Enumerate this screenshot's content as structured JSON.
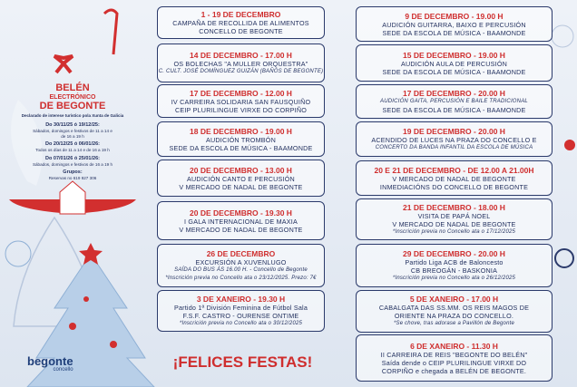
{
  "belen": {
    "title": [
      "BELÉN",
      "ELECTRÓNICO",
      "DE BEGONTE"
    ],
    "subtitle": "Declarado de interese turístico pola Xunta de Galicia",
    "schedule": [
      {
        "period": "Do 30/11/25 ó 19/12/25:",
        "hours": "Sábados, domingos e festivos de 11 a 14 e de 16 a 19 h"
      },
      {
        "period": "Do 20/12/25 ó 06/01/26:",
        "hours": "Todos os días de 11 a 14 e de 16 a 19 h"
      },
      {
        "period": "Do 07/01/26 ó 25/01/26:",
        "hours": "Sábados, domingos e festivos de 16 a 19 h"
      }
    ],
    "groups": "Grupos:",
    "booking": "Reservas no 619 927 306"
  },
  "events_left": [
    {
      "date": "1 - 19 DE DECEMBRO",
      "lines": [
        "CAMPAÑA DE RECOLLIDA DE ALIMENTOS",
        "CONCELLO DE BEGONTE"
      ]
    },
    {
      "date": "14 DE DECEMBRO - 17.00 H",
      "lines": [
        "OS BOLECHAS \"A MULLER ORQUESTRA\"",
        "C. CULT. JOSÉ DOMÍNGUEZ GUIZÁN (BAÑOS DE BEGONTE)"
      ]
    },
    {
      "date": "17 DE DECEMBRO - 12.00 H",
      "lines": [
        "IV CARREIRA SOLIDARIA SAN FAUSQUIÑO",
        "CEIP PLURILINGUE VIRXE DO CORPIÑO"
      ]
    },
    {
      "date": "18 DE DECEMBRO - 19.00 H",
      "lines": [
        "AUDICIÓN TROMBÓN",
        "SEDE DA ESCOLA DE MÚSICA - BAAMONDE"
      ]
    },
    {
      "date": "20 DE DECEMBRO - 13.00 H",
      "lines": [
        "AUDICIÓN CANTO E PERCUSIÓN",
        "V MERCADO DE NADAL DE BEGONTE"
      ]
    },
    {
      "date": "20 DE DECEMBRO - 19.30 H",
      "lines": [
        "I GALA INTERNACIONAL DE MAXIA",
        "V MERCADO DE NADAL DE BEGONTE"
      ]
    },
    {
      "date": "26 DE DECEMBRO",
      "lines": [
        "EXCURSIÓN A XUVENLUGO",
        "SAÍDA DO BUS ÁS 16.00 H. - Concello de Begonte",
        "*Inscrición previa no Concello ata o 23/12/2025. Prezo: 7€"
      ]
    },
    {
      "date": "3 DE XANEIRO - 19.30 H",
      "lines": [
        "Partido 1ª División Feminina de Fútbol Sala",
        "F.S.F. CASTRO - OURENSE ONTIME",
        "*Inscrición previa no Concello ata o 30/12/2025"
      ]
    }
  ],
  "events_right": [
    {
      "date": "9 DE DECEMBRO - 19.00 H",
      "lines": [
        "AUDICIÓN GUITARRA, BAIXO E PERCUSIÓN",
        "SEDE DA ESCOLA DE MÚSICA - BAAMONDE"
      ]
    },
    {
      "date": "15 DE DECEMBRO - 19.00 H",
      "lines": [
        "AUDICIÓN AULA DE PERCUSIÓN",
        "SEDE DA ESCOLA DE MÚSICA - BAAMONDE"
      ]
    },
    {
      "date": "17 DE DECEMBRO - 20.00 H",
      "lines": [
        "AUDICIÓN GAITA, PERCUSIÓN E BAILE TRADICIONAL",
        "SEDE DA ESCOLA DE MÚSICA - BAAMONDE"
      ]
    },
    {
      "date": "19 DE DECEMBRO - 20.00 H",
      "lines": [
        "ACENDIDO DE LUCES NA PRAZA DO CONCELLO E",
        "CONCERTO DA BANDA INFANTIL DA ESCOLA DE MÚSICA"
      ]
    },
    {
      "date": "20 E 21 DE DECEMBRO - DE 12.00 A 21.00H",
      "lines": [
        "V MERCADO DE NADAL DE BEGONTE",
        "INMEDIACIÓNS DO CONCELLO DE BEGONTE"
      ]
    },
    {
      "date": "21 DE DECEMBRO - 18.00 H",
      "lines": [
        "VISITA DE PAPÁ NOEL",
        "V MERCADO DE NADAL DE BEGONTE",
        "*Inscrición previa no Concello ata o 17/12/2025"
      ]
    },
    {
      "date": "29 DE DECEMBRO - 20.00 H",
      "lines": [
        "Partido Liga ACB de Baloncesto",
        "CB BREOGÁN - BASKONIA",
        "*Inscrición previa no Concello ata o 26/12/2025"
      ]
    },
    {
      "date": "5 DE XANEIRO - 17.00 H",
      "lines": [
        "CABALGATA DAS SS.MM. OS REIS MAGOS DE",
        "ORIENTE NA PRAZA DO CONCELLO.",
        "*Se chove, tras adorase a Pavillón de Begonte"
      ]
    },
    {
      "date": "6 DE XANEIRO - 11.30 H",
      "lines": [
        "II CARREIRA DE REIS \"BEGONTE DO BELÉN\"",
        "Saída dende o CEIP PLURILINGUE VIRXE DO",
        "CORPIÑO e chegada a BELÉN DE BEGONTE."
      ]
    }
  ],
  "footer": "¡FELICES FESTAS!",
  "logo": {
    "name": "begonte",
    "sub": "concello"
  }
}
